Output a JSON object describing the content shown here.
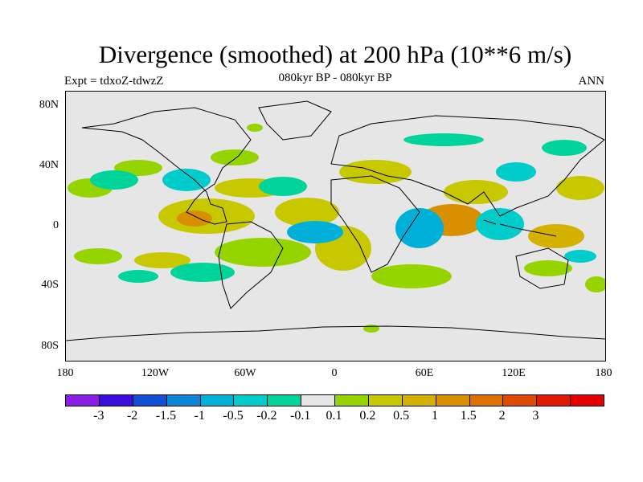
{
  "title": "Divergence (smoothed) at 200 hPa (10**6 m/s)",
  "subtitle": "080kyr BP - 080kyr BP",
  "left_label": "Expt = tdxoZ-tdwzZ",
  "right_label": "ANN",
  "lat_labels": [
    "80N",
    "40N",
    "0",
    "40S",
    "80S"
  ],
  "lon_labels": [
    "180",
    "120W",
    "60W",
    "0",
    "60E",
    "120E",
    "180"
  ],
  "colorbar": {
    "colors": [
      "#8b1fe5",
      "#3b0de0",
      "#1150d4",
      "#0a85d8",
      "#00b0d8",
      "#00cccc",
      "#00d49a",
      "#e6e6e6",
      "#96d400",
      "#c8c800",
      "#d4b000",
      "#d99000",
      "#dd7000",
      "#dd4a00",
      "#e01a00",
      "#e50000"
    ],
    "labels": [
      "-3",
      "-2",
      "-1.5",
      "-1",
      "-0.5",
      "-0.2",
      "-0.1",
      "0.1",
      "0.2",
      "0.5",
      "1",
      "1.5",
      "2",
      "3"
    ]
  },
  "map_colors": {
    "background": "#e6e6e6",
    "positive_weak": "#96d400",
    "positive_mid": "#c8c800",
    "positive_strong": "#d4b000",
    "positive_max": "#d99000",
    "negative_weak": "#00d49a",
    "negative_mid": "#00cccc",
    "negative_strong": "#00b0d8",
    "negative_max": "#0a85d8",
    "coastline": "#000000"
  }
}
